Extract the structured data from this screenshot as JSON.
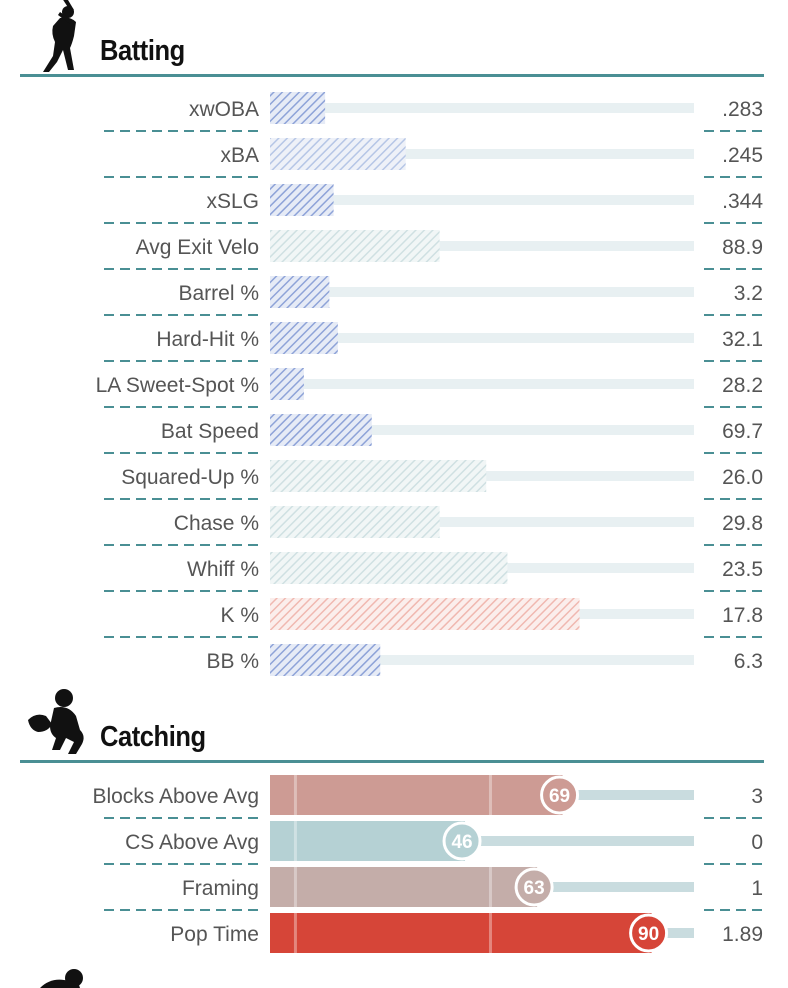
{
  "sections": {
    "batting_title": "Batting",
    "catching_title": "Catching"
  },
  "colors": {
    "teal": "#4a8f94",
    "track": "#e8f0f2",
    "blue_hatch": "#8ea3d8",
    "light_blue_hatch": "#b6c6e6",
    "teal_hatch": "#cfe0e2",
    "red_hatch": "#f0b8b0",
    "label": "#555555"
  },
  "chart_data": [
    {
      "type": "bar",
      "title": "Batting",
      "orientation": "horizontal",
      "value_axis": "percentile",
      "xlim": [
        0,
        100
      ],
      "categories": [
        "xwOBA",
        "xBA",
        "xSLG",
        "Avg Exit Velo",
        "Barrel %",
        "Hard-Hit %",
        "LA Sweet-Spot %",
        "Bat Speed",
        "Squared-Up %",
        "Chase %",
        "Whiff %",
        "K %",
        "BB %"
      ],
      "percentiles": [
        13,
        32,
        15,
        40,
        14,
        16,
        8,
        24,
        51,
        40,
        56,
        73,
        26
      ],
      "styles": [
        "blue",
        "light",
        "blue",
        "teal",
        "blue",
        "blue",
        "blue",
        "blue",
        "teal",
        "teal",
        "teal",
        "red",
        "blue"
      ],
      "stat_values": [
        ".283",
        ".245",
        ".344",
        "88.9",
        "3.2",
        "32.1",
        "28.2",
        "69.7",
        "26.0",
        "29.8",
        "23.5",
        "17.8",
        "6.3"
      ]
    },
    {
      "type": "bar",
      "title": "Catching",
      "orientation": "horizontal",
      "value_axis": "percentile",
      "xlim": [
        0,
        100
      ],
      "categories": [
        "Blocks Above Avg",
        "CS Above Avg",
        "Framing",
        "Pop Time"
      ],
      "percentiles": [
        69,
        46,
        63,
        90
      ],
      "percentile_labels": [
        "69",
        "46",
        "63",
        "90"
      ],
      "colors": [
        "#cd9b94",
        "#b5d1d4",
        "#c4ada9",
        "#d64538"
      ],
      "stat_values": [
        "3",
        "0",
        "1",
        "1.89"
      ]
    }
  ]
}
